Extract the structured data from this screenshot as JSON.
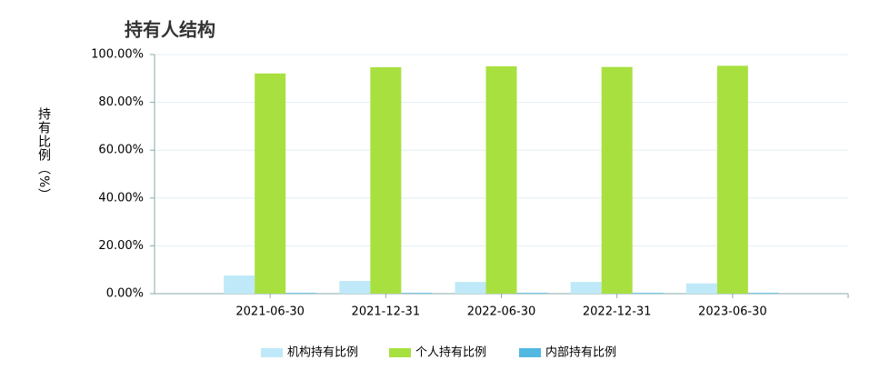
{
  "chart_data": {
    "type": "bar",
    "title": "持有人结构",
    "y_label": "持有比例（%）",
    "categories": [
      "2021-06-30",
      "2021-12-31",
      "2022-06-30",
      "2022-12-31",
      "2023-06-30"
    ],
    "series": [
      {
        "name": "机构持有比例",
        "color": "#bfe9f8",
        "values": [
          7.6,
          5.3,
          4.9,
          4.9,
          4.3
        ]
      },
      {
        "name": "个人持有比例",
        "color": "#a8e040",
        "values": [
          92.1,
          94.7,
          95.1,
          94.8,
          95.3
        ]
      },
      {
        "name": "内部持有比例",
        "color": "#52b8e0",
        "values": [
          0.3,
          0.3,
          0.3,
          0.3,
          0.3
        ]
      }
    ],
    "ylim": [
      0,
      100
    ],
    "yticks": [
      {
        "value": 0,
        "label": "0.00%"
      },
      {
        "value": 20,
        "label": "20.00%"
      },
      {
        "value": 40,
        "label": "40.00%"
      },
      {
        "value": 60,
        "label": "60.00%"
      },
      {
        "value": 80,
        "label": "80.00%"
      },
      {
        "value": 100,
        "label": "100.00%"
      }
    ],
    "grid": true,
    "legend": "bottom"
  }
}
